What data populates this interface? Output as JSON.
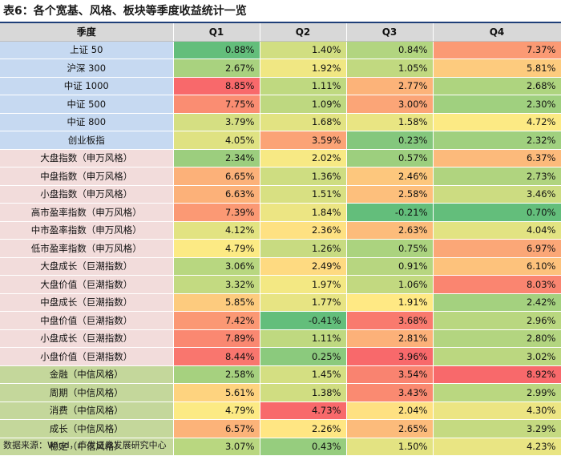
{
  "title": "表6：各个宽基、风格、板块等季度收益统计一览",
  "header": [
    "季度",
    "Q1",
    "Q2",
    "Q3",
    "Q4"
  ],
  "groups": [
    {
      "bg": "#c6d9f1",
      "rows": [
        {
          "label": "上证 50",
          "values": [
            "0.88%",
            "1.40%",
            "0.84%",
            "7.37%"
          ]
        },
        {
          "label": "沪深 300",
          "values": [
            "2.67%",
            "1.92%",
            "1.05%",
            "5.81%"
          ]
        },
        {
          "label": "中证 1000",
          "values": [
            "8.85%",
            "1.11%",
            "2.77%",
            "2.68%"
          ]
        },
        {
          "label": "中证 500",
          "values": [
            "7.75%",
            "1.09%",
            "3.00%",
            "2.30%"
          ]
        },
        {
          "label": "中证 800",
          "values": [
            "3.79%",
            "1.68%",
            "1.58%",
            "4.72%"
          ]
        },
        {
          "label": "创业板指",
          "values": [
            "4.05%",
            "3.59%",
            "0.23%",
            "2.32%"
          ]
        }
      ]
    },
    {
      "bg": "#f2dcdb",
      "rows": [
        {
          "label": "大盘指数（申万风格）",
          "values": [
            "2.34%",
            "2.02%",
            "0.57%",
            "6.37%"
          ]
        },
        {
          "label": "中盘指数（申万风格）",
          "values": [
            "6.65%",
            "1.36%",
            "2.46%",
            "2.73%"
          ]
        },
        {
          "label": "小盘指数（申万风格）",
          "values": [
            "6.63%",
            "1.51%",
            "2.58%",
            "3.46%"
          ]
        },
        {
          "label": "高市盈率指数（申万风格）",
          "values": [
            "7.39%",
            "1.84%",
            "-0.21%",
            "0.70%"
          ]
        },
        {
          "label": "中市盈率指数（申万风格）",
          "values": [
            "4.12%",
            "2.36%",
            "2.63%",
            "4.04%"
          ]
        },
        {
          "label": "低市盈率指数（申万风格）",
          "values": [
            "4.79%",
            "1.26%",
            "0.75%",
            "6.97%"
          ]
        },
        {
          "label": "大盘成长（巨潮指数）",
          "values": [
            "3.06%",
            "2.49%",
            "0.91%",
            "6.10%"
          ]
        },
        {
          "label": "大盘价值（巨潮指数）",
          "values": [
            "3.32%",
            "1.97%",
            "1.06%",
            "8.03%"
          ]
        },
        {
          "label": "中盘成长（巨潮指数）",
          "values": [
            "5.85%",
            "1.77%",
            "1.91%",
            "2.42%"
          ]
        },
        {
          "label": "中盘价值（巨潮指数）",
          "values": [
            "7.42%",
            "-0.41%",
            "3.68%",
            "2.96%"
          ]
        },
        {
          "label": "小盘成长（巨潮指数）",
          "values": [
            "7.89%",
            "1.11%",
            "2.81%",
            "2.80%"
          ]
        },
        {
          "label": "小盘价值（巨潮指数）",
          "values": [
            "8.44%",
            "0.25%",
            "3.96%",
            "3.02%"
          ]
        }
      ]
    },
    {
      "bg": "#c4d79b",
      "rows": [
        {
          "label": "金融（中信风格）",
          "values": [
            "2.58%",
            "1.45%",
            "3.54%",
            "8.92%"
          ]
        },
        {
          "label": "周期（中信风格）",
          "values": [
            "5.61%",
            "1.38%",
            "3.43%",
            "2.99%"
          ]
        },
        {
          "label": "消费（中信风格）",
          "values": [
            "4.79%",
            "4.73%",
            "2.04%",
            "4.30%"
          ]
        },
        {
          "label": "成长（中信风格）",
          "values": [
            "6.57%",
            "2.26%",
            "2.65%",
            "3.29%"
          ]
        },
        {
          "label": "稳定（中信风格）",
          "values": [
            "3.07%",
            "0.43%",
            "1.50%",
            "4.23%"
          ]
        }
      ]
    }
  ],
  "footer": "数据来源：Wind，广发证券发展研究中心"
}
